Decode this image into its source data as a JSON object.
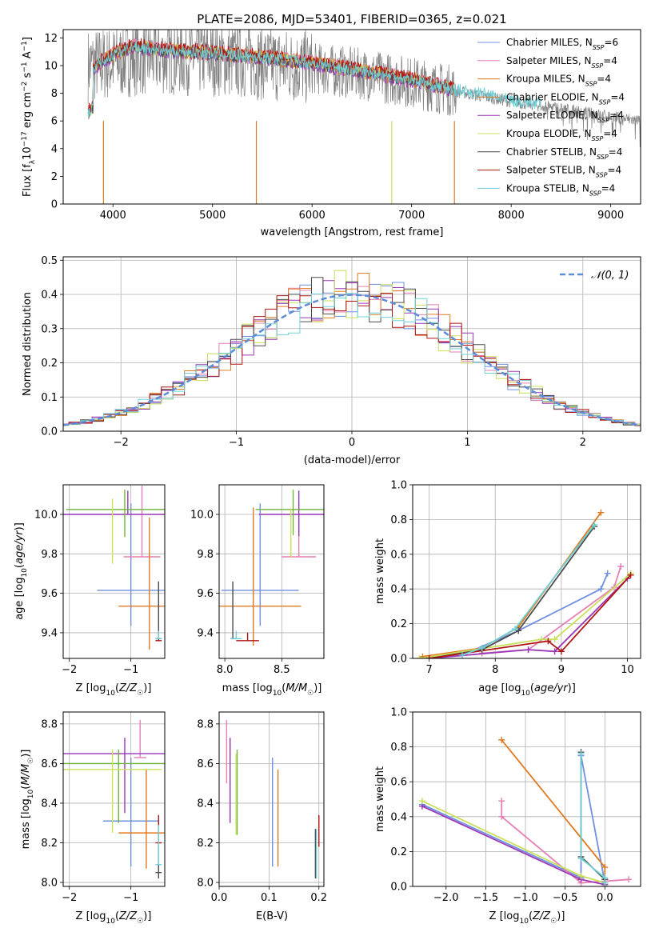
{
  "figure": {
    "title": "PLATE=2086, MJD=53401, FIBERID=0365, z=0.021"
  },
  "colors": [
    "#6f8fe0",
    "#e67fb5",
    "#d9761f",
    "#e07a20",
    "#9b35b8",
    "#c9e05a",
    "#4c4c4c",
    "#b01515",
    "#6fd1d8"
  ],
  "chart_data": [
    {
      "id": "spectrum",
      "type": "line",
      "xlabel": "wavelength [Angstrom, rest frame]",
      "ylabel": "Flux [f_λ 10^-17 erg cm^-2 s^-1 A^-1]",
      "xlim": [
        3500,
        9300
      ],
      "ylim": [
        0,
        12.6
      ],
      "xticks": [
        4000,
        5000,
        6000,
        7000,
        8000,
        9000
      ],
      "yticks": [
        0,
        2,
        4,
        6,
        8,
        10,
        12
      ],
      "legend_position": "right",
      "legend": [
        "Chabrier MILES, N_SSP=6",
        "Salpeter MILES, N_SSP=4",
        "Kroupa MILES, N_SSP=4",
        "Chabrier ELODIE, N_SSP=4",
        "Salpeter ELODIE, N_SSP=4",
        "Kroupa ELODIE, N_SSP=4",
        "Chabrier STELIB, N_SSP=4",
        "Salpeter STELIB, N_SSP=4",
        "Kroupa STELIB, N_SSP=4"
      ],
      "data_continuum": {
        "x": [
          3750,
          4000,
          4200,
          4500,
          5000,
          5500,
          6000,
          6500,
          7000,
          7400,
          8000,
          8500,
          9000,
          9300
        ],
        "y": [
          10.0,
          10.2,
          10.5,
          10.6,
          10.5,
          10.2,
          9.8,
          9.4,
          8.8,
          8.2,
          7.4,
          6.9,
          6.3,
          6.0
        ]
      },
      "model_continuum": {
        "x": [
          3750,
          4000,
          4200,
          4500,
          5000,
          5500,
          6000,
          6500,
          7000,
          7400,
          7700,
          8000,
          8500,
          9000
        ],
        "y": [
          9.6,
          10.8,
          11.4,
          11.1,
          10.9,
          10.6,
          10.2,
          9.6,
          9.0,
          8.3,
          8.0,
          7.5,
          7.0,
          6.4
        ]
      }
    },
    {
      "id": "residuals",
      "type": "line",
      "xlabel": "(data-model)/error",
      "ylabel": "Normed distribution",
      "xlim": [
        -2.5,
        2.5
      ],
      "ylim": [
        0,
        0.51
      ],
      "xticks": [
        -2,
        -1,
        0,
        1,
        2
      ],
      "yticks": [
        0.0,
        0.1,
        0.2,
        0.3,
        0.4,
        0.5
      ],
      "grid": true,
      "legend_position": "top-right",
      "legend": [
        "𝒩(0, 1)"
      ]
    },
    {
      "id": "age_vs_Z",
      "type": "scatter",
      "xlabel": "Z [log10(Z/Z☉)]",
      "ylabel": "age [log10(age/yr)]",
      "xlim": [
        -2.1,
        -0.45
      ],
      "ylim": [
        9.27,
        10.15
      ],
      "xticks": [
        -2,
        -1
      ],
      "yticks": [
        9.4,
        9.6,
        9.8,
        10.0
      ],
      "grid": true,
      "series": [
        {
          "x": -1.0,
          "y": 9.615,
          "xerr": 0.55,
          "yerr": [
            0.18,
            0.44
          ],
          "color": "#6f8fe0"
        },
        {
          "x": -0.82,
          "y": 9.785,
          "xerr": 0.3,
          "yerr": [
            0.0,
            0.36
          ],
          "color": "#e67fb5"
        },
        {
          "x": -0.7,
          "y": 9.535,
          "xerr": 0.5,
          "yerr": [
            0.22,
            0.45
          ],
          "color": "#e07a20"
        },
        {
          "x": -1.05,
          "y": 10.0,
          "xerr": 1.1,
          "yerr": [
            0.0,
            0.12
          ],
          "color": "#9b35b8"
        },
        {
          "x": -1.1,
          "y": 10.025,
          "xerr": 0.95,
          "yerr": [
            0.14,
            0.1
          ],
          "color": "#6fb33a"
        },
        {
          "x": -1.3,
          "y": 9.95,
          "xerr": 0.0,
          "yerr": [
            0.2,
            0.13
          ],
          "color": "#c9e05a"
        },
        {
          "x": -0.55,
          "y": 9.37,
          "xerr": 0.05,
          "yerr": [
            0.0,
            0.29
          ],
          "color": "#4c4c4c"
        },
        {
          "x": -0.55,
          "y": 9.36,
          "xerr": 0.05,
          "yerr": [
            0.0,
            0.05
          ],
          "color": "#b01515"
        },
        {
          "x": -0.55,
          "y": 9.37,
          "xerr": 0.05,
          "yerr": [
            0.0,
            0.04
          ],
          "color": "#6fd1d8"
        }
      ]
    },
    {
      "id": "age_vs_mass",
      "type": "scatter",
      "xlabel": "mass [log10(M/M☉)]",
      "ylabel": "",
      "xlim": [
        7.95,
        8.87
      ],
      "ylim": [
        9.27,
        10.15
      ],
      "xticks": [
        8.0,
        8.5
      ],
      "yticks": [
        9.4,
        9.6,
        9.8,
        10.0
      ],
      "grid": true,
      "series": [
        {
          "x": 8.31,
          "y": 9.615,
          "xerr": 0.34,
          "yerr": [
            0.18,
            0.44
          ],
          "color": "#6f8fe0"
        },
        {
          "x": 8.65,
          "y": 9.785,
          "xerr": 0.15,
          "yerr": [
            0.0,
            0.27
          ],
          "color": "#e67fb5"
        },
        {
          "x": 8.25,
          "y": 9.535,
          "xerr": 0.42,
          "yerr": [
            0.2,
            0.5
          ],
          "color": "#e07a20"
        },
        {
          "x": 8.65,
          "y": 10.0,
          "xerr": 0.35,
          "yerr": [
            0.11,
            0.12
          ],
          "color": "#9b35b8"
        },
        {
          "x": 8.6,
          "y": 10.025,
          "xerr": 0.33,
          "yerr": [
            0.13,
            0.1
          ],
          "color": "#6fb33a"
        },
        {
          "x": 8.58,
          "y": 9.95,
          "xerr": 0.0,
          "yerr": [
            0.17,
            0.08
          ],
          "color": "#c9e05a"
        },
        {
          "x": 8.07,
          "y": 9.37,
          "xerr": 0.02,
          "yerr": [
            0.0,
            0.29
          ],
          "color": "#4c4c4c"
        },
        {
          "x": 8.2,
          "y": 9.36,
          "xerr": 0.1,
          "yerr": [
            0.0,
            0.04
          ],
          "color": "#b01515"
        },
        {
          "x": 8.1,
          "y": 9.37,
          "xerr": 0.05,
          "yerr": [
            0.0,
            0.04
          ],
          "color": "#6fd1d8"
        }
      ]
    },
    {
      "id": "weight_vs_age",
      "type": "line",
      "xlabel": "age [log10(age/yr)]",
      "ylabel": "mass weight",
      "xlim": [
        6.75,
        10.2
      ],
      "ylim": [
        0,
        1.0
      ],
      "xticks": [
        7,
        8,
        9,
        10
      ],
      "yticks": [
        0.0,
        0.2,
        0.4,
        0.6,
        0.8,
        1.0
      ],
      "grid": true,
      "series": [
        {
          "x": [
            7.5,
            8.35,
            9.6,
            9.7
          ],
          "y": [
            0.02,
            0.16,
            0.4,
            0.49
          ],
          "color": "#6f8fe0"
        },
        {
          "x": [
            7.8,
            8.5,
            9.8,
            9.9
          ],
          "y": [
            0.03,
            0.05,
            0.41,
            0.53
          ],
          "color": "#e67fb5"
        },
        {
          "x": [
            6.9,
            7.8,
            8.35,
            9.6
          ],
          "y": [
            0.01,
            0.06,
            0.18,
            0.84
          ],
          "color": "#e07a20"
        },
        {
          "x": [
            7.0,
            8.5,
            8.9,
            10.0
          ],
          "y": [
            0.0,
            0.05,
            0.04,
            0.46
          ],
          "color": "#9b35b8"
        },
        {
          "x": [
            6.85,
            8.7,
            8.9,
            10.05
          ],
          "y": [
            0.0,
            0.11,
            0.11,
            0.49
          ],
          "color": "#c9e05a"
        },
        {
          "x": [
            7.0,
            7.8,
            8.35,
            9.5
          ],
          "y": [
            0.0,
            0.05,
            0.16,
            0.76
          ],
          "color": "#4c4c4c"
        },
        {
          "x": [
            7.0,
            8.8,
            9.0,
            10.05
          ],
          "y": [
            0.0,
            0.1,
            0.04,
            0.48
          ],
          "color": "#b01515"
        },
        {
          "x": [
            7.5,
            7.8,
            8.3,
            9.5
          ],
          "y": [
            0.02,
            0.06,
            0.17,
            0.77
          ],
          "color": "#6fd1d8"
        }
      ]
    },
    {
      "id": "mass_vs_Z",
      "type": "scatter",
      "xlabel": "Z [log10(Z/Z☉)]",
      "ylabel": "mass [log10(M/M☉)]",
      "xlim": [
        -2.1,
        -0.45
      ],
      "ylim": [
        7.98,
        8.86
      ],
      "xticks": [
        -2,
        -1
      ],
      "yticks": [
        8.0,
        8.2,
        8.4,
        8.6,
        8.8
      ],
      "grid": true,
      "series": [
        {
          "x": -1.0,
          "y": 8.31,
          "xerr": 0.45,
          "yerr": [
            0.23,
            0.32
          ],
          "color": "#6f8fe0"
        },
        {
          "x": -0.85,
          "y": 8.63,
          "xerr": 0.1,
          "yerr": [
            0.0,
            0.19
          ],
          "color": "#e67fb5"
        },
        {
          "x": -0.75,
          "y": 8.25,
          "xerr": 0.45,
          "yerr": [
            0.18,
            0.32
          ],
          "color": "#e07a20"
        },
        {
          "x": -1.1,
          "y": 8.65,
          "xerr": 1.0,
          "yerr": [
            0.3,
            0.08
          ],
          "color": "#9b35b8"
        },
        {
          "x": -1.2,
          "y": 8.6,
          "xerr": 0.95,
          "yerr": [
            0.3,
            0.07
          ],
          "color": "#6fb33a"
        },
        {
          "x": -1.3,
          "y": 8.57,
          "xerr": 0.8,
          "yerr": [
            0.32,
            0.1
          ],
          "color": "#c9e05a"
        },
        {
          "x": -0.55,
          "y": 8.05,
          "xerr": 0.05,
          "yerr": [
            0.03,
            0.24
          ],
          "color": "#4c4c4c"
        },
        {
          "x": -0.55,
          "y": 8.2,
          "xerr": 0.05,
          "yerr": [
            0.02,
            0.14
          ],
          "color": "#b01515"
        },
        {
          "x": -0.55,
          "y": 8.09,
          "xerr": 0.05,
          "yerr": [
            0.0,
            0.2
          ],
          "color": "#6fd1d8"
        }
      ]
    },
    {
      "id": "mass_vs_EBV",
      "type": "scatter",
      "xlabel": "E(B-V)",
      "ylabel": "",
      "xlim": [
        0.0,
        0.21
      ],
      "ylim": [
        7.98,
        8.86
      ],
      "xticks": [
        0.0,
        0.1,
        0.2
      ],
      "yticks": [
        8.0,
        8.2,
        8.4,
        8.6,
        8.8
      ],
      "grid": true,
      "series": [
        {
          "x": 0.107,
          "y": 8.36,
          "yerr": [
            0.28,
            0.27
          ],
          "color": "#6f8fe0"
        },
        {
          "x": 0.015,
          "y": 8.66,
          "yerr": [
            0.16,
            0.16
          ],
          "color": "#e67fb5"
        },
        {
          "x": 0.118,
          "y": 8.33,
          "yerr": [
            0.25,
            0.24
          ],
          "color": "#e07a20"
        },
        {
          "x": 0.022,
          "y": 8.51,
          "yerr": [
            0.21,
            0.22
          ],
          "color": "#9b35b8"
        },
        {
          "x": 0.036,
          "y": 8.46,
          "yerr": [
            0.22,
            0.21
          ],
          "color": "#6fb33a"
        },
        {
          "x": 0.034,
          "y": 8.43,
          "yerr": [
            0.19,
            0.22
          ],
          "color": "#c9e05a"
        },
        {
          "x": 0.193,
          "y": 8.14,
          "yerr": [
            0.12,
            0.13
          ],
          "color": "#4c4c4c"
        },
        {
          "x": 0.2,
          "y": 8.26,
          "yerr": [
            0.08,
            0.08
          ],
          "color": "#b01515"
        },
        {
          "x": 0.195,
          "y": 8.14,
          "yerr": [
            0.12,
            0.13
          ],
          "color": "#6fd1d8"
        }
      ]
    },
    {
      "id": "weight_vs_Z",
      "type": "line",
      "xlabel": "Z [log10(Z/Z☉)]",
      "ylabel": "mass weight",
      "xlim": [
        -2.42,
        0.45
      ],
      "ylim": [
        0,
        1.0
      ],
      "xticks": [
        -2.0,
        -1.5,
        -1.0,
        -0.5,
        0.0
      ],
      "yticks": [
        0.0,
        0.2,
        0.4,
        0.6,
        0.8,
        1.0
      ],
      "grid": true,
      "series": [
        {
          "x": [
            -2.3,
            -0.3,
            -0.3,
            0.0
          ],
          "y": [
            0.47,
            0.05,
            0.75,
            0.02
          ],
          "color": "#6f8fe0"
        },
        {
          "x": [
            -1.3,
            -1.3,
            -0.3,
            0.3
          ],
          "y": [
            0.49,
            0.4,
            0.02,
            0.04
          ],
          "color": "#e67fb5"
        },
        {
          "x": [
            -1.3,
            0.0,
            0.0,
            0.0
          ],
          "y": [
            0.84,
            0.11,
            0.02,
            0.04
          ],
          "color": "#e07a20"
        },
        {
          "x": [
            -2.3,
            -0.3,
            0.0,
            0.0
          ],
          "y": [
            0.46,
            0.04,
            0.01,
            0.0
          ],
          "color": "#9b35b8"
        },
        {
          "x": [
            -2.3,
            -0.3,
            0.0,
            0.0
          ],
          "y": [
            0.49,
            0.06,
            0.02,
            0.0
          ],
          "color": "#c9e05a"
        },
        {
          "x": [
            -0.3,
            -0.3,
            0.0,
            0.0
          ],
          "y": [
            0.77,
            0.17,
            0.04,
            0.02
          ],
          "color": "#4c4c4c"
        },
        {
          "x": [
            -0.3,
            -0.3,
            0.0,
            0.0
          ],
          "y": [
            0.76,
            0.16,
            0.05,
            0.02
          ],
          "color": "#6fd1d8"
        }
      ]
    }
  ]
}
